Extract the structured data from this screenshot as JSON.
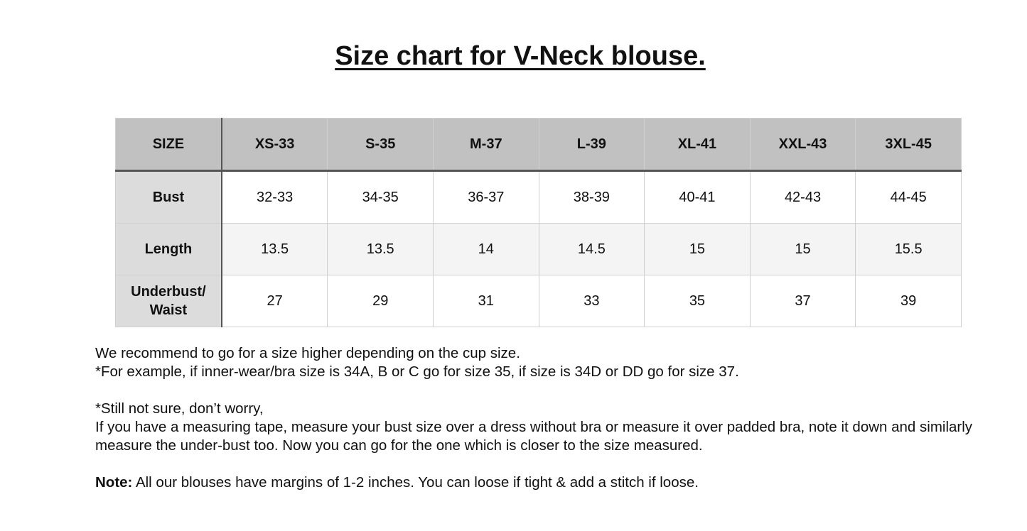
{
  "title": "Size chart for V-Neck blouse.",
  "table": {
    "header": [
      "SIZE",
      "XS-33",
      "S-35",
      "M-37",
      "L-39",
      "XL-41",
      "XXL-43",
      "3XL-45"
    ],
    "rows": [
      {
        "label": "Bust",
        "values": [
          "32-33",
          "34-35",
          "36-37",
          "38-39",
          "40-41",
          "42-43",
          "44-45"
        ]
      },
      {
        "label": "Length",
        "values": [
          "13.5",
          "13.5",
          "14",
          "14.5",
          "15",
          "15",
          "15.5"
        ]
      },
      {
        "label": "Underbust/ Waist",
        "values": [
          "27",
          "29",
          "31",
          "33",
          "35",
          "37",
          "39"
        ]
      }
    ]
  },
  "notes": {
    "line1": "We recommend to go for a size higher depending on the cup size.",
    "line2": "*For example, if inner-wear/bra size is 34A, B or C go for size 35, if size is 34D or DD go for size 37.",
    "line3": "*Still not sure, don’t worry,",
    "line4": "If you have a measuring tape, measure your bust size over a dress without bra or measure it over padded bra, note it down and similarly measure the under-bust too. Now you can go for the one which is closer to the size measured.",
    "note_label": "Note:",
    "note_text": " All our blouses have margins of 1-2 inches. You can loose if tight & add a stitch if loose."
  }
}
